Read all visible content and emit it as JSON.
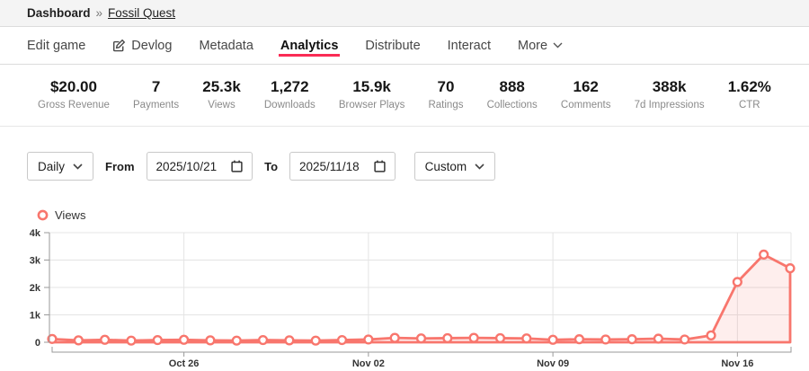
{
  "breadcrumb": {
    "dashboard": "Dashboard",
    "separator": "»",
    "game": "Fossil Quest"
  },
  "tabs": [
    {
      "label": "Edit game",
      "active": false
    },
    {
      "label": "Devlog",
      "active": false,
      "icon": "edit-pencil-icon"
    },
    {
      "label": "Metadata",
      "active": false
    },
    {
      "label": "Analytics",
      "active": true
    },
    {
      "label": "Distribute",
      "active": false
    },
    {
      "label": "Interact",
      "active": false
    },
    {
      "label": "More",
      "active": false,
      "has_chevron": true
    }
  ],
  "stats": [
    {
      "value": "$20.00",
      "label": "Gross Revenue"
    },
    {
      "value": "7",
      "label": "Payments"
    },
    {
      "value": "25.3k",
      "label": "Views"
    },
    {
      "value": "1,272",
      "label": "Downloads"
    },
    {
      "value": "15.9k",
      "label": "Browser Plays"
    },
    {
      "value": "70",
      "label": "Ratings"
    },
    {
      "value": "888",
      "label": "Collections"
    },
    {
      "value": "162",
      "label": "Comments"
    },
    {
      "value": "388k",
      "label": "7d Impressions"
    },
    {
      "value": "1.62%",
      "label": "CTR"
    }
  ],
  "filters": {
    "interval_value": "Daily",
    "from_label": "From",
    "from_value": "2025/10/21",
    "to_label": "To",
    "to_value": "2025/11/18",
    "range_value": "Custom"
  },
  "legend": {
    "label": "Views",
    "color": "#f8766d"
  },
  "accent_colors": {
    "active_tab_underline": "#fa2c55",
    "series": "#f8766d"
  },
  "chart_data": {
    "type": "line",
    "title": "",
    "xlabel": "",
    "ylabel": "",
    "x": [
      "Oct 21",
      "Oct 22",
      "Oct 23",
      "Oct 24",
      "Oct 25",
      "Oct 26",
      "Oct 27",
      "Oct 28",
      "Oct 29",
      "Oct 30",
      "Oct 31",
      "Nov 01",
      "Nov 02",
      "Nov 03",
      "Nov 04",
      "Nov 05",
      "Nov 06",
      "Nov 07",
      "Nov 08",
      "Nov 09",
      "Nov 10",
      "Nov 11",
      "Nov 12",
      "Nov 13",
      "Nov 14",
      "Nov 15",
      "Nov 16",
      "Nov 17",
      "Nov 18"
    ],
    "series": [
      {
        "name": "Views",
        "color": "#f8766d",
        "values": [
          120,
          70,
          90,
          60,
          80,
          90,
          70,
          60,
          80,
          70,
          60,
          80,
          100,
          160,
          140,
          150,
          160,
          150,
          140,
          90,
          110,
          100,
          110,
          130,
          100,
          250,
          2200,
          3200,
          2700
        ]
      }
    ],
    "ylim": [
      0,
      4000
    ],
    "y_ticks": [
      {
        "value": 4000,
        "label": "4k"
      },
      {
        "value": 3000,
        "label": "3k"
      },
      {
        "value": 2000,
        "label": "2k"
      },
      {
        "value": 1000,
        "label": "1k"
      },
      {
        "value": 0,
        "label": "0"
      }
    ],
    "x_tick_indices": [
      5,
      12,
      19,
      26
    ],
    "x_tick_labels": [
      "Oct 26",
      "Nov 02",
      "Nov 09",
      "Nov 16"
    ],
    "grid": true,
    "legend_position": "top-left",
    "marker": "open-circle",
    "area_fill": true,
    "area_fill_opacity": 0.12
  }
}
